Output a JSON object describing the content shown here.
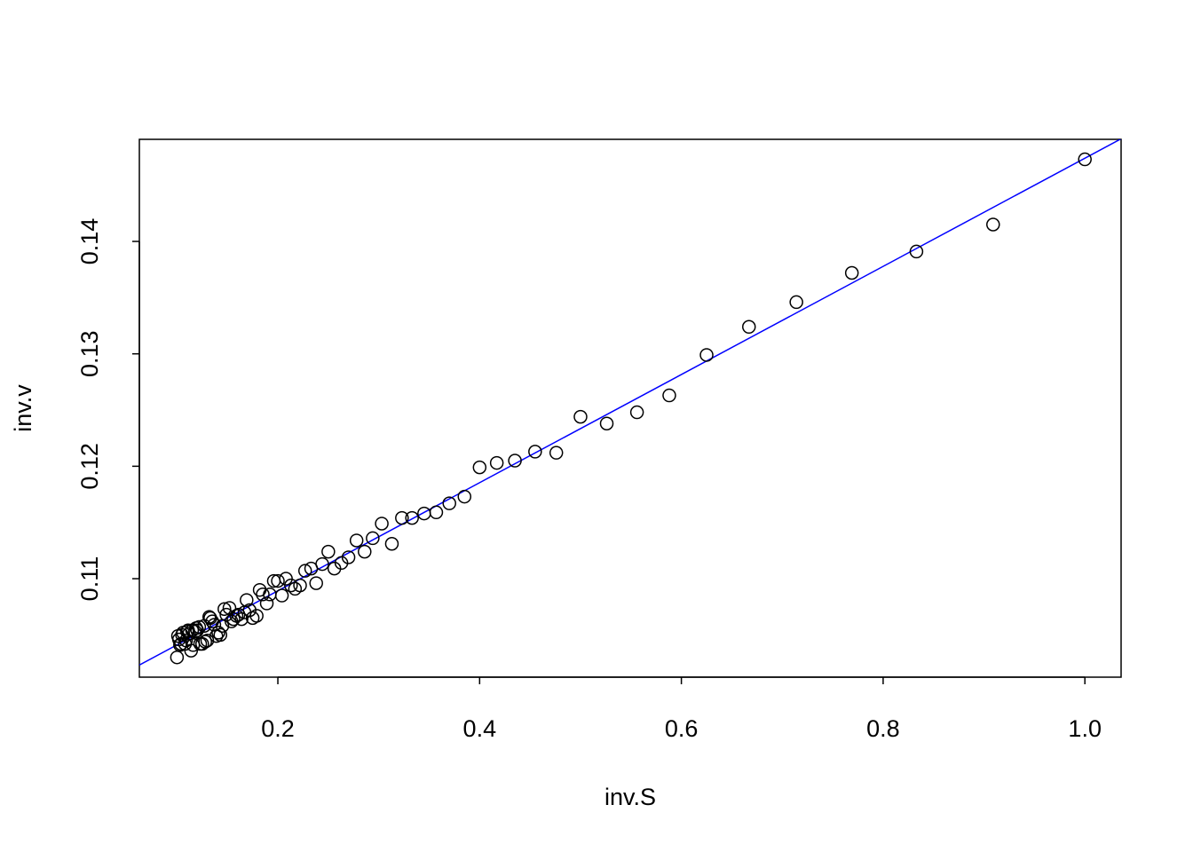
{
  "chart_data": {
    "type": "scatter",
    "x_label": "inv.S",
    "y_label": "inv.v",
    "x": [
      1,
      0.909,
      0.833,
      0.769,
      0.714,
      0.667,
      0.625,
      0.588,
      0.556,
      0.526,
      0.5,
      0.476,
      0.455,
      0.435,
      0.417,
      0.4,
      0.385,
      0.37,
      0.357,
      0.345,
      0.333,
      0.323,
      0.313,
      0.303,
      0.294,
      0.286,
      0.278,
      0.27,
      0.263,
      0.256,
      0.25,
      0.244,
      0.238,
      0.233,
      0.227,
      0.222,
      0.217,
      0.213,
      0.208,
      0.204,
      0.2,
      0.196,
      0.192,
      0.189,
      0.185,
      0.182,
      0.179,
      0.175,
      0.172,
      0.169,
      0.167,
      0.164,
      0.161,
      0.159,
      0.156,
      0.154,
      0.152,
      0.149,
      0.147,
      0.145,
      0.143,
      0.141,
      0.139,
      0.137,
      0.135,
      0.133,
      0.132,
      0.13,
      0.128,
      0.127,
      0.125,
      0.123,
      0.122,
      0.12,
      0.119,
      0.118,
      0.116,
      0.115,
      0.114,
      0.112,
      0.111,
      0.11,
      0.109,
      0.108,
      0.106,
      0.105,
      0.104,
      0.103,
      0.102,
      0.101,
      0.1
    ],
    "values": [
      0.1473,
      0.1415,
      0.1391,
      0.1372,
      0.1346,
      0.1324,
      0.1299,
      0.1263,
      0.1248,
      0.1238,
      0.1244,
      0.1212,
      0.1213,
      0.1205,
      0.1203,
      0.1199,
      0.1173,
      0.1167,
      0.1159,
      0.1158,
      0.1154,
      0.1154,
      0.1131,
      0.1149,
      0.1136,
      0.1124,
      0.1134,
      0.1119,
      0.1114,
      0.1109,
      0.1124,
      0.1113,
      0.1096,
      0.1109,
      0.1107,
      0.1094,
      0.1091,
      0.1094,
      0.11,
      0.1085,
      0.1098,
      0.1098,
      0.1086,
      0.1078,
      0.1086,
      0.109,
      0.1067,
      0.1065,
      0.1072,
      0.1081,
      0.107,
      0.1064,
      0.1068,
      0.1067,
      0.1064,
      0.1062,
      0.1074,
      0.1068,
      0.1073,
      0.1058,
      0.105,
      0.1052,
      0.1049,
      0.1059,
      0.1062,
      0.1065,
      0.1066,
      0.1045,
      0.1044,
      0.1058,
      0.1042,
      0.1042,
      0.1057,
      0.1054,
      0.1056,
      0.1053,
      0.1041,
      0.1054,
      0.1036,
      0.1051,
      0.1054,
      0.1053,
      0.1045,
      0.1042,
      0.1052,
      0.105,
      0.1042,
      0.1041,
      0.1046,
      0.1049,
      0.103
    ],
    "color": "#000000",
    "fit_line": {
      "intercept": 0.0993,
      "slope": 0.0481,
      "color": "#0000ff"
    },
    "xlim": [
      0.0627,
      1.0359
    ],
    "ylim": [
      0.10124,
      0.14908
    ],
    "xticks": [
      0.2,
      0.4,
      0.6,
      0.8,
      {
        "value": 1,
        "label": "1.0"
      }
    ],
    "yticks": [
      0.11,
      0.12,
      0.13,
      0.14
    ]
  }
}
